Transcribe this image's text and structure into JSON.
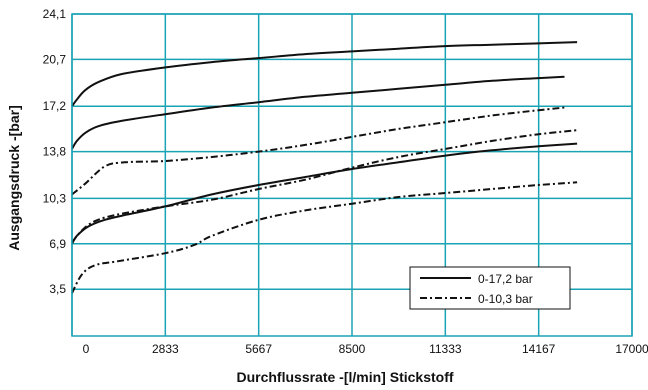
{
  "chart_data": {
    "type": "line",
    "title": "",
    "xlabel": "Durchflussrate -[l/min] Stickstoff",
    "ylabel": "Ausgangsdruck -[bar]",
    "xlim": [
      0,
      17000
    ],
    "ylim": [
      0,
      24.1
    ],
    "xticks": [
      0,
      2833,
      5667,
      8500,
      11333,
      14167,
      17000
    ],
    "xtick_labels": [
      "0",
      "2833",
      "5667",
      "8500",
      "11333",
      "14167",
      "17000"
    ],
    "yticks": [
      3.5,
      6.9,
      10.3,
      13.8,
      17.2,
      20.7,
      24.1
    ],
    "ytick_labels": [
      "3,5",
      "6,9",
      "10,3",
      "13,8",
      "17,2",
      "20,7",
      "24,1"
    ],
    "grid": true,
    "legend_position": "bottom-right",
    "legend": [
      {
        "label": "0-17,2 bar",
        "style": "solid"
      },
      {
        "label": "0-10,3 bar",
        "style": "dashdot"
      }
    ],
    "colors": {
      "grid": "#1aa3b4",
      "line": "#111111"
    },
    "series": [
      {
        "group": "0-17,2 bar",
        "style": "solid",
        "points": [
          [
            0,
            17.2
          ],
          [
            150,
            17.7
          ],
          [
            400,
            18.4
          ],
          [
            800,
            19.0
          ],
          [
            1500,
            19.6
          ],
          [
            2833,
            20.1
          ],
          [
            4250,
            20.5
          ],
          [
            5667,
            20.8
          ],
          [
            7083,
            21.1
          ],
          [
            8500,
            21.3
          ],
          [
            9917,
            21.5
          ],
          [
            11333,
            21.7
          ],
          [
            12750,
            21.8
          ],
          [
            14167,
            21.9
          ],
          [
            15333,
            22.0
          ]
        ]
      },
      {
        "group": "0-17,2 bar",
        "style": "solid",
        "points": [
          [
            0,
            14.0
          ],
          [
            150,
            14.6
          ],
          [
            400,
            15.2
          ],
          [
            800,
            15.7
          ],
          [
            1500,
            16.1
          ],
          [
            2833,
            16.6
          ],
          [
            4250,
            17.1
          ],
          [
            5667,
            17.5
          ],
          [
            7083,
            17.9
          ],
          [
            8500,
            18.2
          ],
          [
            9917,
            18.5
          ],
          [
            11333,
            18.8
          ],
          [
            12750,
            19.1
          ],
          [
            14167,
            19.3
          ],
          [
            14950,
            19.4
          ]
        ]
      },
      {
        "group": "0-17,2 bar",
        "style": "solid",
        "points": [
          [
            0,
            6.9
          ],
          [
            150,
            7.5
          ],
          [
            500,
            8.2
          ],
          [
            1000,
            8.7
          ],
          [
            1700,
            9.1
          ],
          [
            2833,
            9.7
          ],
          [
            4250,
            10.6
          ],
          [
            5667,
            11.3
          ],
          [
            7083,
            11.9
          ],
          [
            8500,
            12.5
          ],
          [
            9917,
            13.0
          ],
          [
            11333,
            13.5
          ],
          [
            12750,
            13.9
          ],
          [
            14167,
            14.2
          ],
          [
            15333,
            14.4
          ]
        ]
      },
      {
        "group": "0-10,3 bar",
        "style": "dashdot",
        "points": [
          [
            0,
            10.6
          ],
          [
            400,
            11.4
          ],
          [
            1000,
            12.7
          ],
          [
            1600,
            13.0
          ],
          [
            2833,
            13.1
          ],
          [
            4250,
            13.4
          ],
          [
            5667,
            13.8
          ],
          [
            7083,
            14.3
          ],
          [
            8500,
            14.9
          ],
          [
            9917,
            15.5
          ],
          [
            11333,
            16.0
          ],
          [
            12750,
            16.5
          ],
          [
            14167,
            16.9
          ],
          [
            14950,
            17.1
          ]
        ]
      },
      {
        "group": "0-10,3 bar",
        "style": "dashdot",
        "points": [
          [
            0,
            7.0
          ],
          [
            300,
            7.9
          ],
          [
            700,
            8.6
          ],
          [
            1400,
            9.1
          ],
          [
            2833,
            9.7
          ],
          [
            4250,
            10.2
          ],
          [
            5667,
            11.0
          ],
          [
            7083,
            11.7
          ],
          [
            8500,
            12.6
          ],
          [
            9917,
            13.4
          ],
          [
            11333,
            14.0
          ],
          [
            12750,
            14.6
          ],
          [
            14167,
            15.1
          ],
          [
            15333,
            15.4
          ]
        ]
      },
      {
        "group": "0-10,3 bar",
        "style": "dashdot",
        "points": [
          [
            0,
            3.2
          ],
          [
            300,
            4.6
          ],
          [
            700,
            5.3
          ],
          [
            1400,
            5.6
          ],
          [
            2833,
            6.2
          ],
          [
            3700,
            6.8
          ],
          [
            4250,
            7.5
          ],
          [
            5667,
            8.7
          ],
          [
            7083,
            9.4
          ],
          [
            8500,
            9.9
          ],
          [
            9917,
            10.4
          ],
          [
            11333,
            10.7
          ],
          [
            12750,
            11.0
          ],
          [
            14167,
            11.3
          ],
          [
            15333,
            11.5
          ]
        ]
      }
    ]
  }
}
